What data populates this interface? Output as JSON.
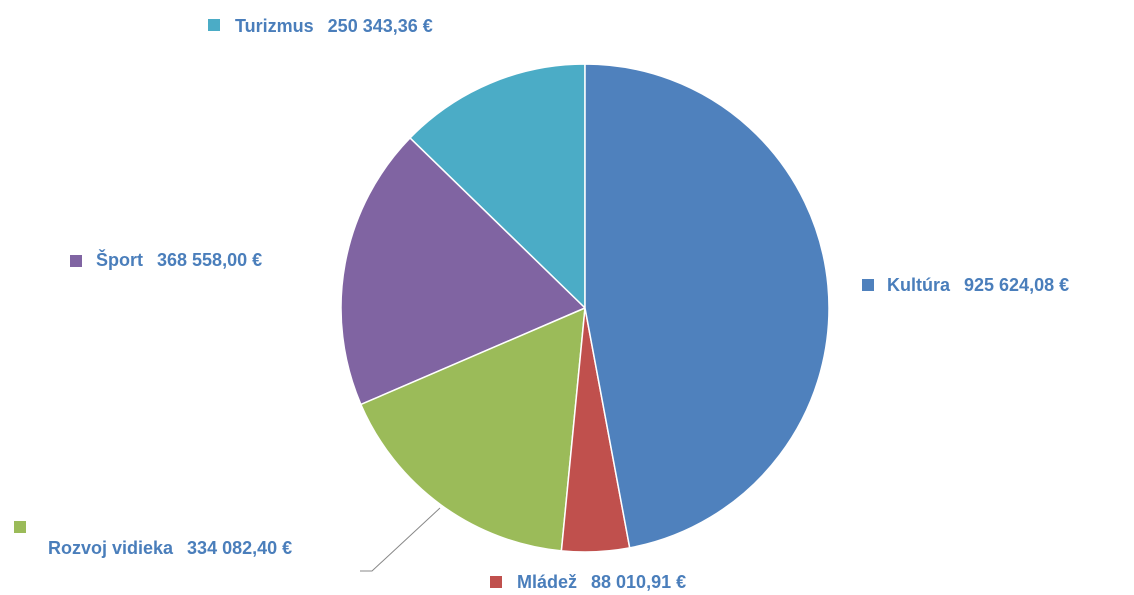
{
  "chart_data": {
    "type": "pie",
    "categories": [
      "Kultúra",
      "Mládež",
      "Rozvoj vidieka",
      "Šport",
      "Turizmus"
    ],
    "values": [
      925624.08,
      88010.91,
      334082.4,
      368558.0,
      250343.36
    ],
    "value_labels": [
      "925 624,08 €",
      "88 010,91 €",
      "334 082,40 €",
      "368 558,00 €",
      "250 343,36 €"
    ],
    "colors": [
      "#4f81bd",
      "#c0504d",
      "#9bbb59",
      "#8064a2",
      "#4bacc6"
    ]
  }
}
